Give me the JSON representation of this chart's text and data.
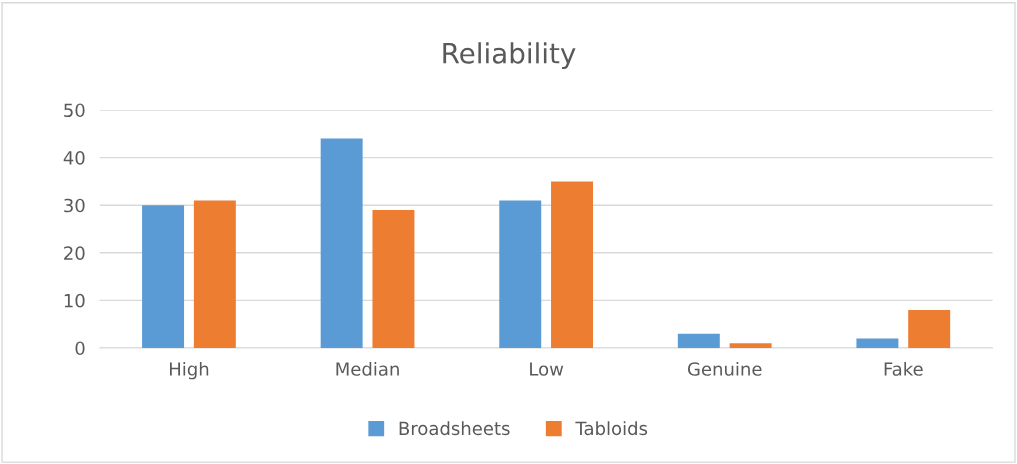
{
  "chart_data": {
    "type": "bar",
    "title": "Reliability",
    "categories": [
      "High",
      "Median",
      "Low",
      "Genuine",
      "Fake"
    ],
    "series": [
      {
        "name": "Broadsheets",
        "color": "#5b9bd5",
        "values": [
          30,
          44,
          31,
          3,
          2
        ]
      },
      {
        "name": "Tabloids",
        "color": "#ed7d31",
        "values": [
          31,
          29,
          35,
          1,
          8
        ]
      }
    ],
    "ylim": [
      0,
      50
    ],
    "yticks": [
      0,
      10,
      20,
      30,
      40,
      50
    ],
    "grid": "y",
    "legend": "bottom"
  }
}
